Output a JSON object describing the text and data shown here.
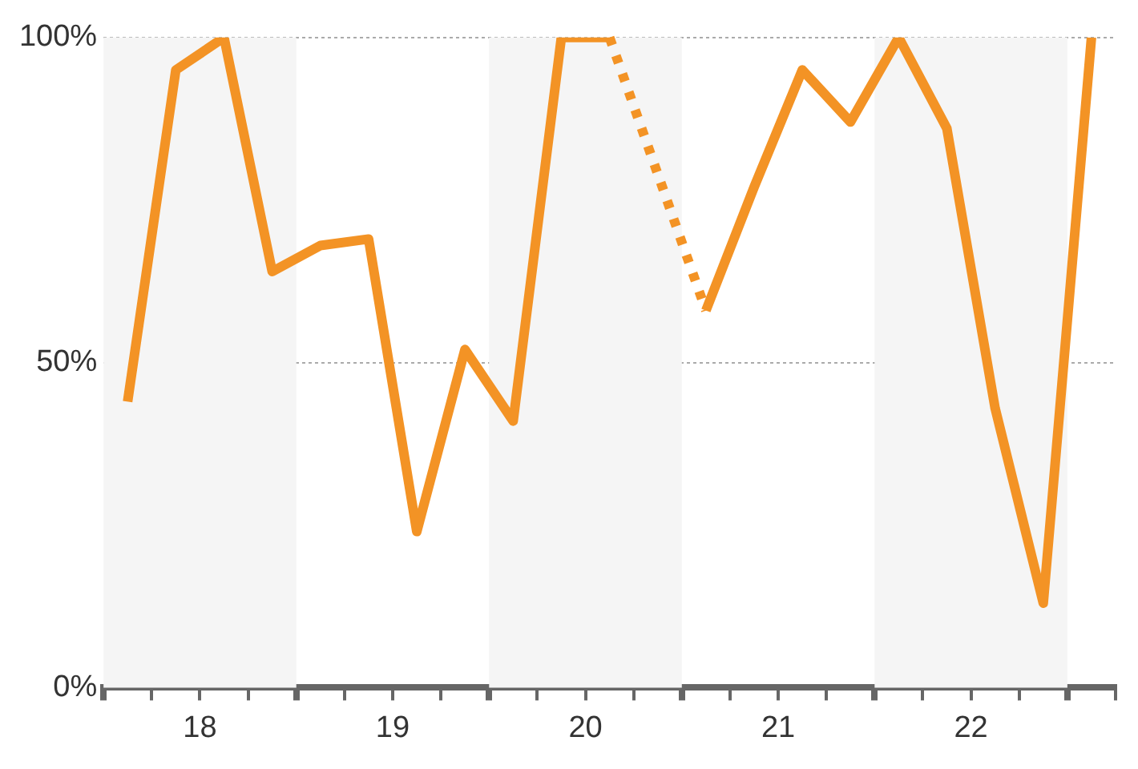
{
  "chart_data": {
    "type": "line",
    "x": [
      17.625,
      17.875,
      18.125,
      18.375,
      18.625,
      18.875,
      19.125,
      19.375,
      19.625,
      19.875,
      20.125,
      20.375,
      20.625,
      20.875,
      21.125,
      21.375,
      21.625,
      21.875,
      22.125,
      22.375,
      22.625
    ],
    "series": [
      {
        "color": "#f39325",
        "values": [
          44,
          95,
          100,
          64,
          68,
          69,
          24,
          52,
          41,
          100,
          100,
          null,
          58,
          77,
          95,
          87,
          100,
          86,
          43,
          13,
          100
        ]
      }
    ],
    "xlim": [
      17.5,
      22.75
    ],
    "xticks": [
      {
        "value": 17.5,
        "label": null
      },
      {
        "value": 17.75,
        "label": null
      },
      18,
      {
        "value": 18.25,
        "label": null
      },
      {
        "value": 18.5,
        "label": null
      },
      {
        "value": 18.75,
        "label": null
      },
      19,
      {
        "value": 19.25,
        "label": null
      },
      {
        "value": 19.5,
        "label": null
      },
      {
        "value": 19.75,
        "label": null
      },
      20,
      {
        "value": 20.25,
        "label": null
      },
      {
        "value": 20.5,
        "label": null
      },
      {
        "value": 20.75,
        "label": null
      },
      21,
      {
        "value": 21.25,
        "label": null
      },
      {
        "value": 21.5,
        "label": null
      },
      {
        "value": 21.75,
        "label": null
      },
      22,
      {
        "value": 22.25,
        "label": null
      },
      {
        "value": 22.5,
        "label": null
      },
      {
        "value": 22.75,
        "label": null
      }
    ],
    "ylim": [
      0,
      100
    ],
    "yticks": [
      {
        "value": 0,
        "label": "0%"
      },
      {
        "value": 50,
        "label": "50%"
      },
      {
        "value": 100,
        "label": "100%"
      }
    ],
    "grid": "y",
    "marker": "none",
    "line_style": "solid",
    "bands": [
      {
        "axis": "x",
        "from": 17.5,
        "to": 18.5,
        "color": "#f5f5f5"
      },
      {
        "axis": "x",
        "from": 19.5,
        "to": 20.5,
        "color": "#f5f5f5"
      },
      {
        "axis": "x",
        "from": 21.5,
        "to": 22.5,
        "color": "#f5f5f5"
      }
    ]
  }
}
